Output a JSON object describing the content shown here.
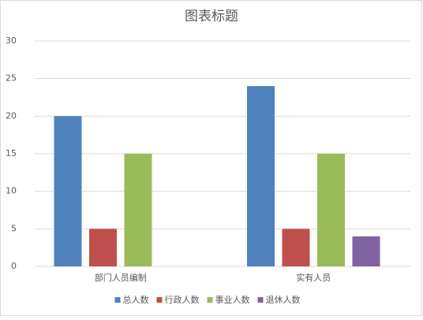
{
  "chart_data": {
    "type": "bar",
    "title": "图表标题",
    "categories": [
      "部门人员编制",
      "实有人员"
    ],
    "series": [
      {
        "name": "总人数",
        "color": "#4f81bd",
        "values": [
          20,
          24
        ]
      },
      {
        "name": "行政人数",
        "color": "#c0504d",
        "values": [
          5,
          5
        ]
      },
      {
        "name": "事业人数",
        "color": "#9bbb59",
        "values": [
          15,
          15
        ]
      },
      {
        "name": "退休人数",
        "color": "#8064a2",
        "values": [
          null,
          4
        ]
      }
    ],
    "ylim": [
      0,
      30
    ],
    "yticks": [
      0,
      5,
      10,
      15,
      20,
      25,
      30
    ],
    "grid": true,
    "legend": "bottom"
  }
}
